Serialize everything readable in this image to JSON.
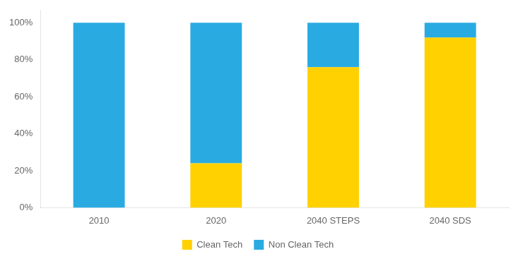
{
  "chart_data": {
    "type": "bar",
    "stacked": true,
    "categories": [
      "2010",
      "2020",
      "2040 STEPS",
      "2040 SDS"
    ],
    "series": [
      {
        "name": "Clean Tech",
        "color": "#FFD100",
        "values": [
          0,
          24,
          76,
          92
        ]
      },
      {
        "name": "Non Clean Tech",
        "color": "#29ABE2",
        "values": [
          100,
          76,
          24,
          8
        ]
      }
    ],
    "ylim": [
      0,
      107
    ],
    "yticks": [
      {
        "value": 0,
        "label": "0%"
      },
      {
        "value": 20,
        "label": "20%"
      },
      {
        "value": 40,
        "label": "40%"
      },
      {
        "value": 60,
        "label": "60%"
      },
      {
        "value": 80,
        "label": "80%"
      },
      {
        "value": 100,
        "label": "100%"
      }
    ],
    "grid": false,
    "legend": "bottom"
  }
}
